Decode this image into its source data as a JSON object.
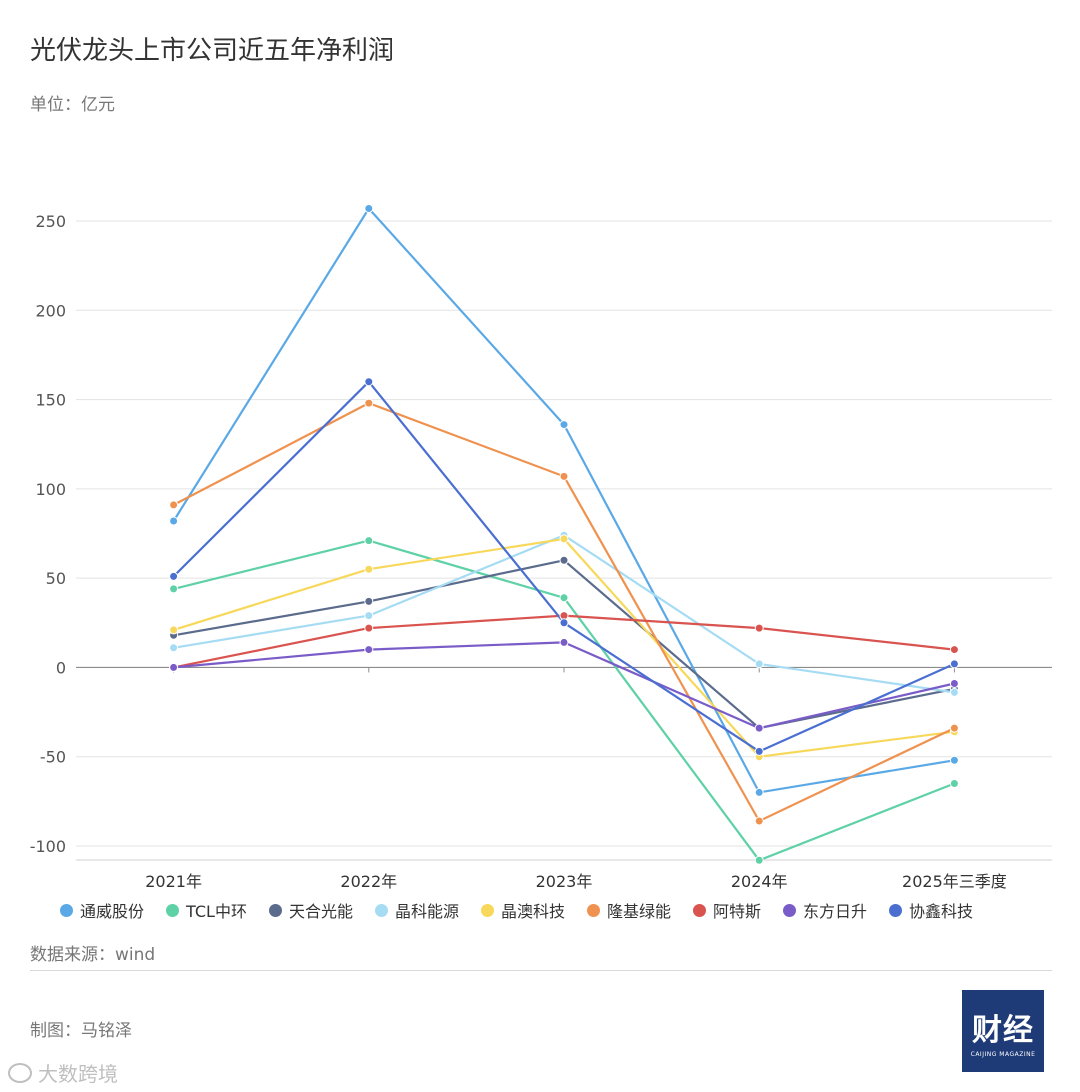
{
  "header": {
    "title": "光伏龙头上市公司近五年净利润",
    "unit": "单位：亿元"
  },
  "footer": {
    "source": "数据来源：wind",
    "author": "制图：马铭泽",
    "logo_text": "财经",
    "logo_sub": "CAIJING MAGAZINE",
    "watermark": "大数跨境"
  },
  "chart_data": {
    "type": "line",
    "title": "光伏龙头上市公司近五年净利润",
    "ylabel": "单位：亿元",
    "categories": [
      "2021年",
      "2022年",
      "2023年",
      "2024年",
      "2025年三季度"
    ],
    "ylim": [
      -100,
      250
    ],
    "yticks": [
      250,
      200,
      150,
      100,
      50,
      0,
      -50,
      -100
    ],
    "grid": true,
    "legend_position": "bottom",
    "series": [
      {
        "name": "通威股份",
        "color": "#5aa9e6",
        "values": [
          82,
          257,
          136,
          -70,
          -52
        ]
      },
      {
        "name": "TCL中环",
        "color": "#5ed1a6",
        "values": [
          44,
          71,
          39,
          -108,
          -65
        ]
      },
      {
        "name": "天合光能",
        "color": "#5b6b8c",
        "values": [
          18,
          37,
          60,
          -34,
          -12
        ]
      },
      {
        "name": "晶科能源",
        "color": "#a6dcf3",
        "values": [
          11,
          29,
          74,
          2,
          -14
        ]
      },
      {
        "name": "晶澳科技",
        "color": "#f7d85a",
        "values": [
          21,
          55,
          72,
          -50,
          -36
        ]
      },
      {
        "name": "隆基绿能",
        "color": "#f0924f",
        "values": [
          91,
          148,
          107,
          -86,
          -34
        ]
      },
      {
        "name": "阿特斯",
        "color": "#d9534f",
        "values": [
          0,
          22,
          29,
          22,
          10
        ]
      },
      {
        "name": "东方日升",
        "color": "#7a5cc9",
        "values": [
          0,
          10,
          14,
          -34,
          -9
        ]
      },
      {
        "name": "协鑫科技",
        "color": "#4a6fd1",
        "values": [
          51,
          160,
          25,
          -47,
          2
        ]
      }
    ]
  }
}
